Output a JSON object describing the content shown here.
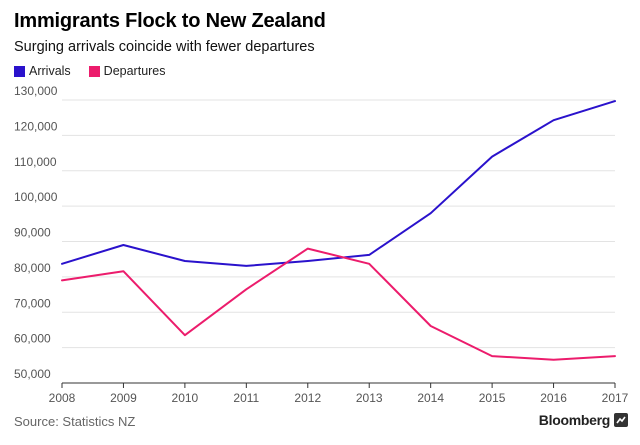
{
  "chart_data": {
    "type": "line",
    "title": "Immigrants Flock to New Zealand",
    "subtitle": "Surging arrivals coincide with fewer departures",
    "x": [
      2008,
      2009,
      2010,
      2011,
      2012,
      2013,
      2014,
      2015,
      2016,
      2017
    ],
    "x_tick_labels": [
      "2008",
      "2009",
      "2010",
      "2011",
      "2012",
      "2013",
      "2014",
      "2015",
      "2016",
      "2017"
    ],
    "ylim": [
      50000,
      130000
    ],
    "y_ticks": [
      50000,
      60000,
      70000,
      80000,
      90000,
      100000,
      110000,
      120000,
      130000
    ],
    "y_tick_labels": [
      "50,000",
      "60,000",
      "70,000",
      "80,000",
      "90,000",
      "100,000",
      "110,000",
      "120,000",
      "130,000"
    ],
    "grid": true,
    "legend_position": "top-left",
    "series": [
      {
        "name": "Arrivals",
        "color": "#2a12cc",
        "values": [
          83700,
          89000,
          84500,
          83100,
          84500,
          86200,
          98000,
          114000,
          124300,
          129700
        ]
      },
      {
        "name": "Departures",
        "color": "#ec1c6c",
        "values": [
          79000,
          81600,
          63500,
          76500,
          88000,
          83700,
          66100,
          57600,
          56600,
          57600
        ]
      }
    ],
    "source": "Source: Statistics NZ"
  },
  "branding": {
    "name": "Bloomberg"
  }
}
